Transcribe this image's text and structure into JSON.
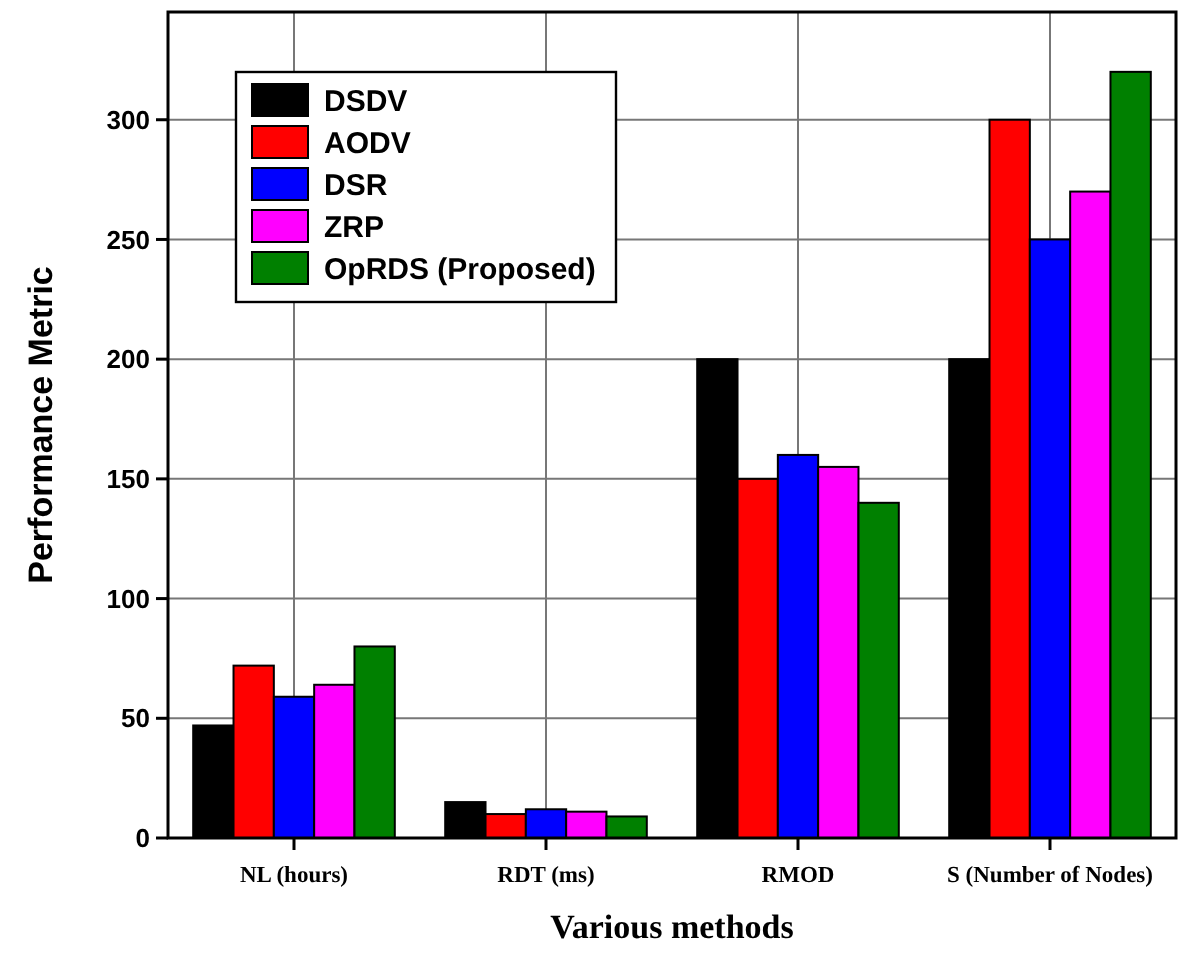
{
  "chart_data": {
    "type": "bar",
    "xlabel": "Various methods",
    "ylabel": "Performance Metric",
    "categories": [
      "NL (hours)",
      "RDT (ms)",
      "RMOD",
      "S (Number of Nodes)"
    ],
    "series": [
      {
        "name": "DSDV",
        "color": "#000000",
        "values": [
          47,
          15,
          200,
          200
        ]
      },
      {
        "name": "AODV",
        "color": "#ff0000",
        "values": [
          72,
          10,
          150,
          300
        ]
      },
      {
        "name": "DSR",
        "color": "#0000ff",
        "values": [
          59,
          12,
          160,
          250
        ]
      },
      {
        "name": "ZRP",
        "color": "#ff00ff",
        "values": [
          64,
          11,
          155,
          270
        ]
      },
      {
        "name": "OpRDS (Proposed)",
        "color": "#008000",
        "values": [
          80,
          9,
          140,
          320
        ]
      }
    ],
    "ylim": [
      0,
      345
    ],
    "yticks": [
      0,
      50,
      100,
      150,
      200,
      250,
      300
    ],
    "grid": true,
    "legend": "top left"
  }
}
